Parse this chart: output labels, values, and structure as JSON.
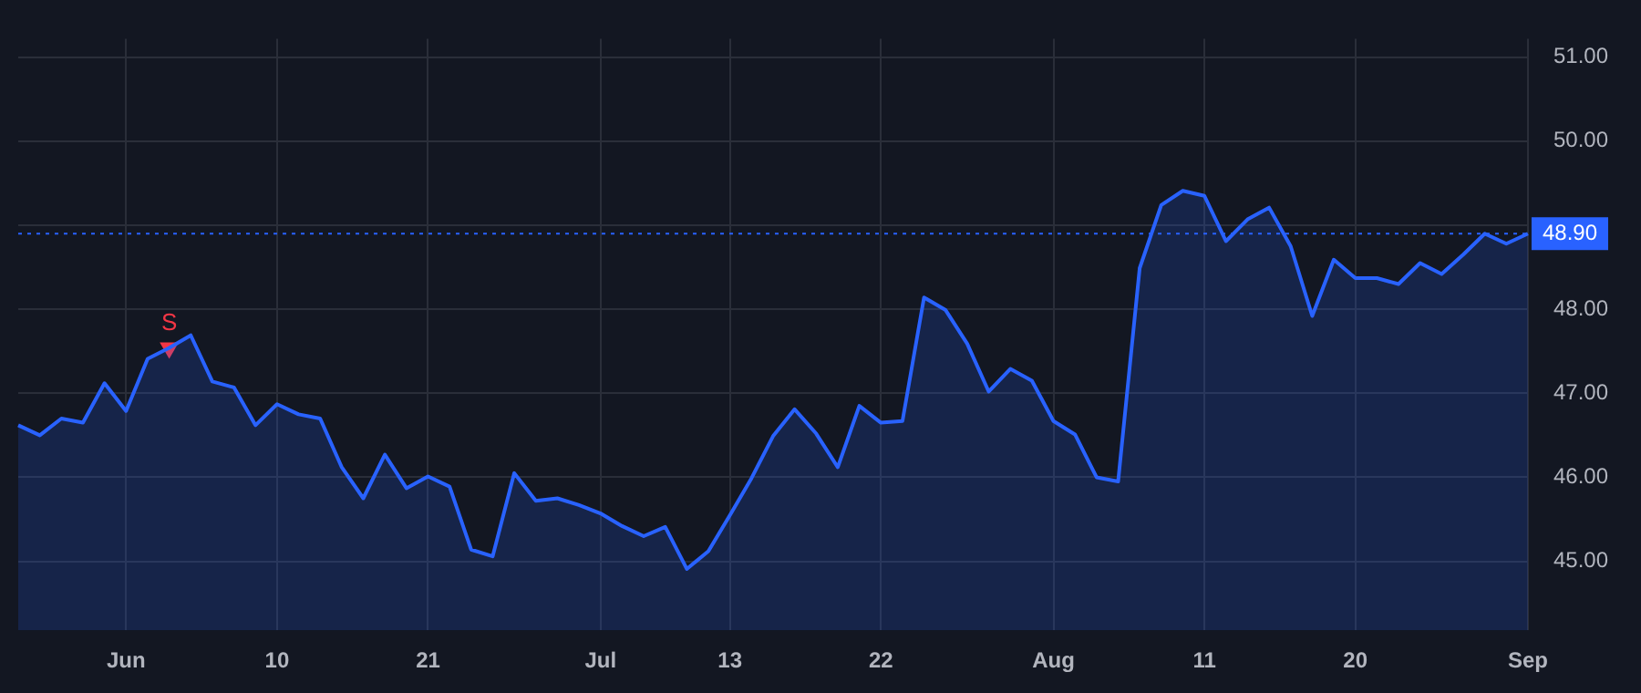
{
  "chart_data": {
    "type": "area",
    "categories": [
      null,
      null,
      null,
      null,
      null,
      "Jun",
      null,
      null,
      null,
      null,
      null,
      null,
      "10",
      null,
      null,
      null,
      null,
      null,
      null,
      "21",
      null,
      null,
      null,
      null,
      null,
      null,
      null,
      "Jul",
      null,
      null,
      null,
      null,
      null,
      "13",
      null,
      null,
      null,
      null,
      null,
      null,
      "22",
      null,
      null,
      null,
      null,
      null,
      null,
      null,
      "Aug",
      null,
      null,
      null,
      null,
      null,
      null,
      "11",
      null,
      null,
      null,
      null,
      null,
      null,
      "20",
      null,
      null,
      null,
      null,
      null,
      null,
      null,
      "Sep"
    ],
    "series": [
      {
        "color": "#2962ff",
        "values": [
          46.62,
          46.5,
          46.7,
          46.65,
          47.12,
          46.79,
          47.41,
          47.54,
          47.69,
          47.14,
          47.07,
          46.62,
          46.87,
          46.75,
          46.7,
          46.12,
          45.75,
          46.27,
          45.87,
          46.01,
          45.89,
          45.14,
          45.06,
          46.05,
          45.72,
          45.75,
          45.67,
          45.57,
          45.42,
          45.3,
          45.41,
          44.91,
          45.12,
          45.55,
          45.99,
          46.49,
          46.81,
          46.52,
          46.12,
          46.85,
          46.65,
          46.67,
          48.14,
          47.99,
          47.59,
          47.02,
          47.29,
          47.15,
          46.67,
          46.51,
          46.0,
          45.95,
          48.49,
          49.24,
          49.41,
          49.35,
          48.81,
          49.07,
          49.21,
          48.75,
          47.92,
          48.59,
          48.37,
          48.37,
          48.3,
          48.55,
          48.42,
          48.65,
          48.9,
          48.78,
          48.9
        ]
      },
      {
        "type": "scatter",
        "name": "S",
        "color": "#f23645",
        "marker": "triangle",
        "values": [
          null,
          null,
          null,
          null,
          null,
          null,
          null,
          47.54,
          null,
          null,
          null,
          null,
          null,
          null,
          null,
          null,
          null,
          null,
          null,
          null,
          null,
          null,
          null,
          null,
          null,
          null,
          null,
          null,
          null,
          null,
          null,
          null,
          null,
          null,
          null,
          null,
          null,
          null,
          null,
          null,
          null,
          null,
          null,
          null,
          null,
          null,
          null,
          null,
          null,
          null,
          null,
          null,
          null,
          null,
          null,
          null,
          null,
          null,
          null,
          null,
          null,
          null,
          null,
          null,
          null,
          null,
          null,
          null,
          null,
          null,
          null
        ]
      }
    ],
    "ylim": [
      44.18,
      51.22
    ],
    "yticks": [
      {
        "value": 45,
        "label": "45.00"
      },
      {
        "value": 46,
        "label": "46.00"
      },
      {
        "value": 47,
        "label": "47.00"
      },
      {
        "value": 48,
        "label": "48.00"
      },
      {
        "value": 49,
        "label": null
      },
      {
        "value": 50,
        "label": "50.00"
      },
      {
        "value": 51,
        "label": "51.00"
      }
    ],
    "ref_lines": [
      {
        "axis": "y",
        "value": 48.9,
        "label": "48.90",
        "color": "#2962ff",
        "line_style": "dotted"
      }
    ],
    "grid": true,
    "legend": false,
    "marker": "none"
  }
}
